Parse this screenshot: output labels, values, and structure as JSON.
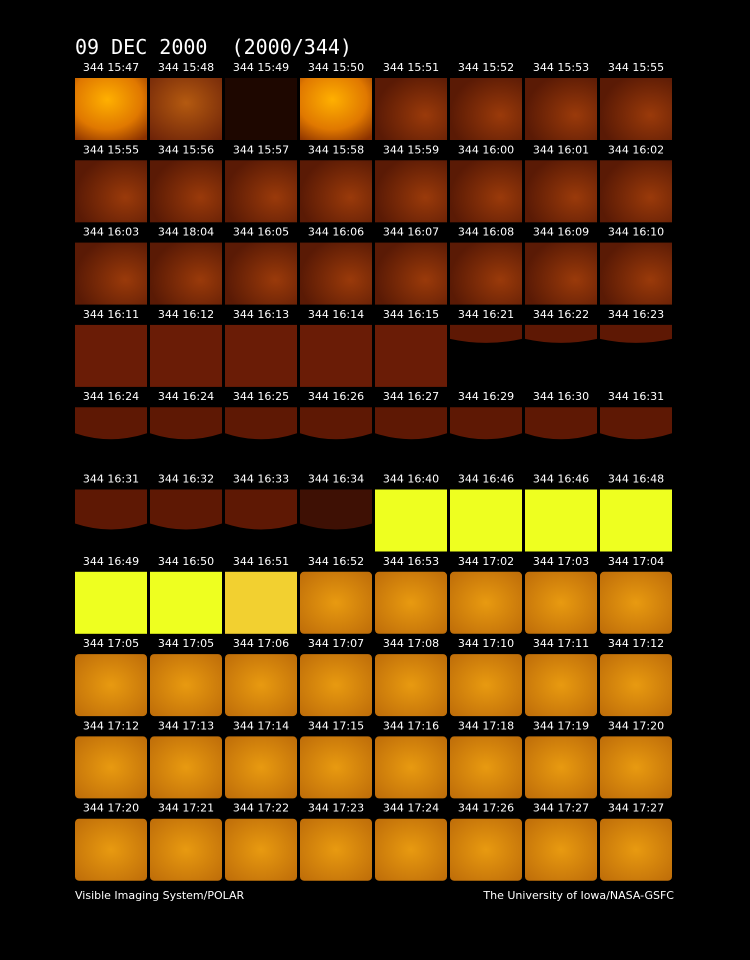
{
  "title": "09 DEC 2000  (2000/344)",
  "rows": [
    [
      "344 15:47",
      "344 15:48",
      "344 15:49",
      "344 15:50",
      "344 15:51",
      "344 15:52",
      "344 15:53",
      "344 15:55"
    ],
    [
      "344 15:55",
      "344 15:56",
      "344 15:57",
      "344 15:58",
      "344 15:59",
      "344 16:00",
      "344 16:01",
      "344 16:02"
    ],
    [
      "344 16:03",
      "344 18:04",
      "344 16:05",
      "344 16:06",
      "344 16:07",
      "344 16:08",
      "344 16:09",
      "344 16:10"
    ],
    [
      "344 16:11",
      "344 16:12",
      "344 16:13",
      "344 16:14",
      "344 16:15",
      "344 16:21",
      "344 16:22",
      "344 16:23"
    ],
    [
      "344 16:24",
      "344 16:24",
      "344 16:25",
      "344 16:26",
      "344 16:27",
      "344 16:29",
      "344 16:30",
      "344 16:31"
    ],
    [
      "344 16:31",
      "344 16:32",
      "344 16:33",
      "344 16:34",
      "344 16:40",
      "344 16:46",
      "344 16:46",
      "344 16:48"
    ],
    [
      "344 16:49",
      "344 16:50",
      "344 16:51",
      "344 16:52",
      "344 16:53",
      "344 17:02",
      "344 17:03",
      "344 17:04"
    ],
    [
      "344 17:05",
      "344 17:05",
      "344 17:06",
      "344 17:07",
      "344 17:08",
      "344 17:10",
      "344 17:11",
      "344 17:12"
    ],
    [
      "344 17:12",
      "344 17:13",
      "344 17:14",
      "344 17:15",
      "344 17:16",
      "344 17:18",
      "344 17:19",
      "344 17:20"
    ],
    [
      "344 17:20",
      "344 17:21",
      "344 17:22",
      "344 17:23",
      "344 17:24",
      "344 17:26",
      "344 17:27",
      "344 17:27"
    ]
  ],
  "footer": {
    "left": "Visible Imaging System/POLAR",
    "right": "The University of Iowa/NASA-GSFC"
  }
}
